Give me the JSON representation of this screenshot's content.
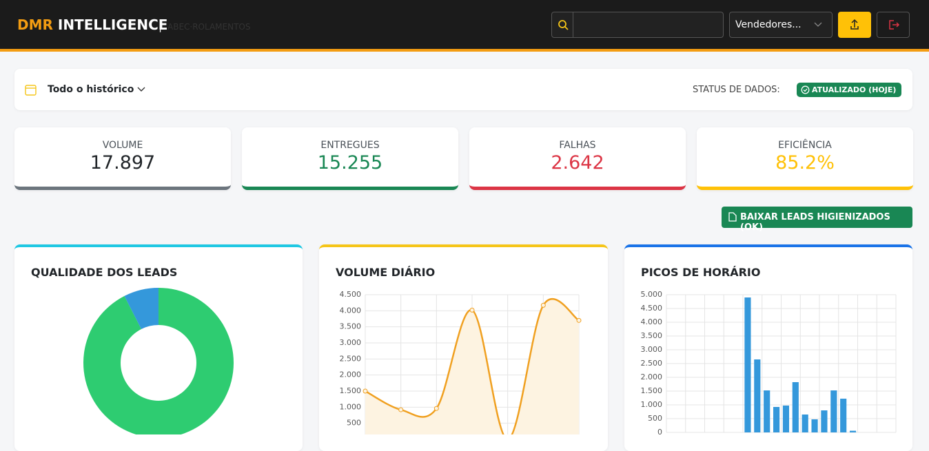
{
  "header": {
    "brand_accent": "DMR",
    "brand": "INTELLIGENCE",
    "separator": "|",
    "subtitle": "ABEC·ROLAMENTOS",
    "select": "Vendedores..."
  },
  "filter": {
    "period": "Todo o histórico",
    "status_label": "STATUS DE DADOS:",
    "status_badge": "ATUALIZADO (HOJE)"
  },
  "kpis": [
    {
      "label": "VOLUME",
      "value": "17.897",
      "color": "#6c757d",
      "text_color": "#212529"
    },
    {
      "label": "ENTREGUES",
      "value": "15.255",
      "color": "#198754",
      "text_color": "#198754"
    },
    {
      "label": "FALHAS",
      "value": "2.642",
      "color": "#dc3545",
      "text_color": "#dc3545"
    },
    {
      "label": "EFICIÊNCIA",
      "value": "85.2%",
      "color": "#ffc107",
      "text_color": "#ffc107"
    }
  ],
  "download_button": "BAIXAR LEADS HIGIENIZADOS (OK)",
  "chart_data": [
    {
      "type": "pie",
      "title": "QUALIDADE DOS LEADS",
      "accent": "#1fc8e3",
      "values": [
        92.5,
        7.5
      ],
      "colors": [
        "#2ecc71",
        "#3498db"
      ]
    },
    {
      "type": "line",
      "title": "VOLUME DIÁRIO",
      "accent": "#f5c518",
      "color": "#f0a020",
      "fill": "#fdf3e1",
      "categories": [
        null,
        null,
        null,
        null,
        null,
        null,
        null
      ],
      "values": [
        1500,
        920,
        960,
        4020,
        0,
        4170,
        3700
      ],
      "ylim": [
        0,
        4500
      ],
      "yticks": [
        {
          "value": 500,
          "label": "500"
        },
        {
          "value": 1000,
          "label": "1.000"
        },
        {
          "value": 1500,
          "label": "1.500"
        },
        {
          "value": 2000,
          "label": "2.000"
        },
        {
          "value": 2500,
          "label": "2.500"
        },
        {
          "value": 3000,
          "label": "3.000"
        },
        {
          "value": 3500,
          "label": "3.500"
        },
        {
          "value": 4000,
          "label": "4.000"
        },
        {
          "value": 4500,
          "label": "4.500"
        }
      ],
      "grid": true
    },
    {
      "type": "bar",
      "title": "PICOS DE HORÁRIO",
      "accent": "#1a73e8",
      "color": "#3498db",
      "categories": [
        null,
        null,
        null,
        null,
        null,
        null,
        null,
        null,
        null,
        null,
        null,
        null,
        null,
        null,
        null,
        null,
        null,
        null,
        null,
        null,
        null,
        null,
        null,
        null
      ],
      "values": [
        0,
        0,
        0,
        0,
        0,
        0,
        0,
        0,
        4900,
        2650,
        1525,
        925,
        975,
        1825,
        650,
        475,
        800,
        1525,
        1225,
        60,
        0,
        0,
        0,
        0
      ],
      "ylim": [
        0,
        5000
      ],
      "yticks": [
        0,
        500,
        {
          "value": 1000,
          "label": "1.000"
        },
        {
          "value": 1500,
          "label": "1.500"
        },
        {
          "value": 2000,
          "label": "2.000"
        },
        {
          "value": 2500,
          "label": "2.500"
        },
        {
          "value": 3000,
          "label": "3.000"
        },
        {
          "value": 3500,
          "label": "3.500"
        },
        {
          "value": 4000,
          "label": "4.000"
        },
        {
          "value": 4500,
          "label": "4.500"
        },
        {
          "value": 5000,
          "label": "5.000"
        }
      ],
      "grid": true
    }
  ]
}
